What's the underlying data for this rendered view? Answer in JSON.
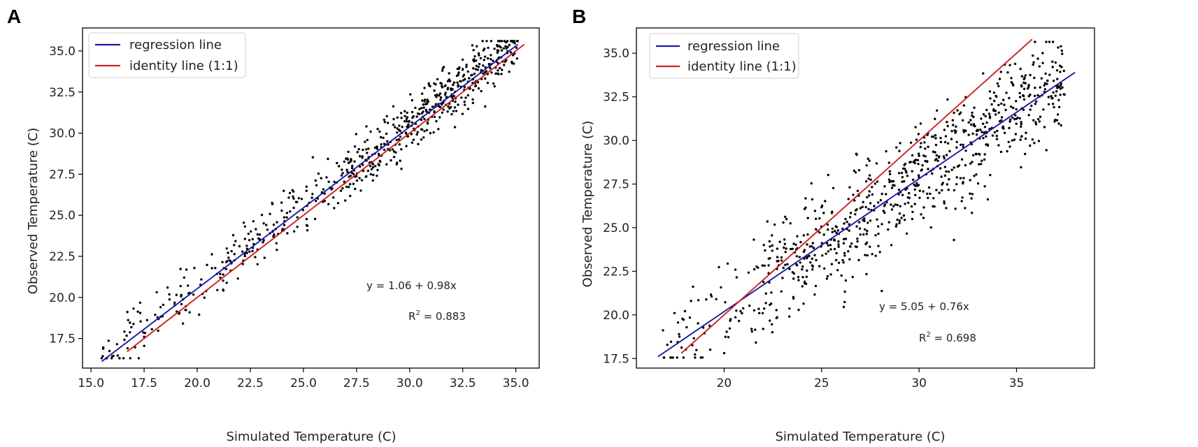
{
  "chart_data": [
    {
      "panel": "A",
      "type": "scatter",
      "xlabel": "Simulated Temperature (C)",
      "ylabel": "Observed Temperature (C)",
      "xlim": [
        14.6,
        36.1
      ],
      "ylim": [
        15.7,
        36.4
      ],
      "xticks": [
        15.0,
        17.5,
        20.0,
        22.5,
        25.0,
        27.5,
        30.0,
        32.5,
        35.0
      ],
      "xtick_labels": [
        "15.0",
        "17.5",
        "20.0",
        "22.5",
        "25.0",
        "27.5",
        "30.0",
        "32.5",
        "35.0"
      ],
      "yticks": [
        17.5,
        20.0,
        22.5,
        25.0,
        27.5,
        30.0,
        32.5,
        35.0
      ],
      "ytick_labels": [
        "17.5",
        "20.0",
        "22.5",
        "25.0",
        "27.5",
        "30.0",
        "32.5",
        "35.0"
      ],
      "legend": {
        "position": "top-left",
        "entries": [
          "regression line",
          "identity line (1:1)"
        ]
      },
      "series": [
        {
          "name": "regression line",
          "kind": "line",
          "color": "#1a1aa6",
          "x": [
            15.5,
            35.1
          ],
          "y": [
            16.1,
            35.4
          ]
        },
        {
          "name": "identity line (1:1)",
          "kind": "line",
          "color": "#cc2222",
          "x": [
            16.7,
            35.4
          ],
          "y": [
            16.7,
            35.4
          ]
        }
      ],
      "points_model": {
        "count": 700,
        "seed": 11,
        "clusters": [
          {
            "xmin": 15.5,
            "xmax": 21.0,
            "weight": 0.11
          },
          {
            "xmin": 21.0,
            "xmax": 27.0,
            "weight": 0.22
          },
          {
            "xmin": 27.0,
            "xmax": 35.1,
            "weight": 0.67
          }
        ],
        "intercept": 1.06,
        "slope": 0.98,
        "noise_sd": 1.15
      },
      "annotations": {
        "equation": "y = 1.06 + 0.98x",
        "r2_prefix": "R",
        "r2_sup": "2",
        "r2_value": " = 0.883"
      }
    },
    {
      "panel": "B",
      "type": "scatter",
      "xlabel": "Simulated Temperature (C)",
      "ylabel": "Observed Temperature (C)",
      "xlim": [
        15.5,
        39.0
      ],
      "ylim": [
        16.95,
        36.45
      ],
      "xticks": [
        20,
        25,
        30,
        35
      ],
      "xtick_labels": [
        "20",
        "25",
        "30",
        "35"
      ],
      "yticks": [
        17.5,
        20.0,
        22.5,
        25.0,
        27.5,
        30.0,
        32.5,
        35.0
      ],
      "ytick_labels": [
        "17.5",
        "20.0",
        "22.5",
        "25.0",
        "27.5",
        "30.0",
        "32.5",
        "35.0"
      ],
      "legend": {
        "position": "top-left",
        "entries": [
          "regression line",
          "identity line (1:1)"
        ]
      },
      "series": [
        {
          "name": "regression line",
          "kind": "line",
          "color": "#1a1aa6",
          "x": [
            16.6,
            38.0
          ],
          "y": [
            17.6,
            33.9
          ]
        },
        {
          "name": "identity line (1:1)",
          "kind": "line",
          "color": "#cc2222",
          "x": [
            17.8,
            35.8
          ],
          "y": [
            17.8,
            35.8
          ]
        }
      ],
      "points_model": {
        "count": 820,
        "seed": 29,
        "clusters": [
          {
            "xmin": 16.8,
            "xmax": 22.0,
            "weight": 0.1
          },
          {
            "xmin": 22.0,
            "xmax": 28.0,
            "weight": 0.3
          },
          {
            "xmin": 28.0,
            "xmax": 37.5,
            "weight": 0.6
          }
        ],
        "intercept": 5.05,
        "slope": 0.76,
        "noise_sd": 2.2
      },
      "annotations": {
        "equation": "y = 5.05 + 0.76x",
        "r2_prefix": "R",
        "r2_sup": "2",
        "r2_value": " = 0.698"
      }
    }
  ],
  "colors": {
    "regression": "#1a1aa6",
    "identity": "#cc2222",
    "points": "#000000",
    "frame": "#000000"
  },
  "panels": {
    "a_label": "A",
    "b_label": "B"
  }
}
